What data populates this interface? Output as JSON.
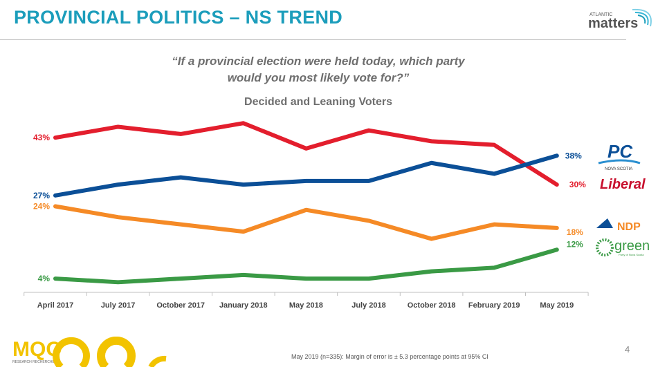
{
  "header": {
    "title": "PROVINCIAL POLITICS – NS TREND",
    "brand_logo": "ATLANTIC matters"
  },
  "question": {
    "line1": "“If a provincial election were held today, which party",
    "line2": "would you most likely vote for?”"
  },
  "subtitle": "Decided and Leaning Voters",
  "chart_data": {
    "type": "line",
    "categories": [
      "April 2017",
      "July 2017",
      "October 2017",
      "January 2018",
      "May 2018",
      "July 2018",
      "October 2018",
      "February 2019",
      "May 2019"
    ],
    "ylim": [
      0,
      48
    ],
    "grid": false,
    "series": [
      {
        "party": "Liberal",
        "color": "#e31e2d",
        "values": [
          43,
          46,
          44,
          47,
          40,
          45,
          42,
          41,
          30
        ],
        "start_label": "43%",
        "end_label": "30%"
      },
      {
        "party": "PC",
        "color": "#0b4f97",
        "values": [
          27,
          30,
          32,
          30,
          31,
          31,
          36,
          33,
          38
        ],
        "start_label": "27%",
        "end_label": "38%"
      },
      {
        "party": "NDP",
        "color": "#f58a26",
        "values": [
          24,
          21,
          19,
          17,
          23,
          20,
          15,
          19,
          18
        ],
        "start_label": "24%",
        "end_label": "18%"
      },
      {
        "party": "Green",
        "color": "#3a9a45",
        "values": [
          4,
          3,
          4,
          5,
          4,
          4,
          6,
          7,
          12
        ],
        "start_label": "4%",
        "end_label": "12%"
      }
    ]
  },
  "party_logos": [
    {
      "name": "PC",
      "sub": "NOVA SCOTIA",
      "color": "#0b4f97"
    },
    {
      "name": "Liberal",
      "color": "#c8102e"
    },
    {
      "name": "NDP",
      "color": "#f58a26"
    },
    {
      "name": "green",
      "sub": "Party of Nova Scotia",
      "color": "#3a9a45"
    }
  ],
  "footer": {
    "note": "May 2019 (n=335): Margin of error is ± 5.3 percentage points at 95% CI",
    "page": "4",
    "company_logo": "MQO RESEARCH RECHERCHE",
    "accent": "#f2c300"
  }
}
